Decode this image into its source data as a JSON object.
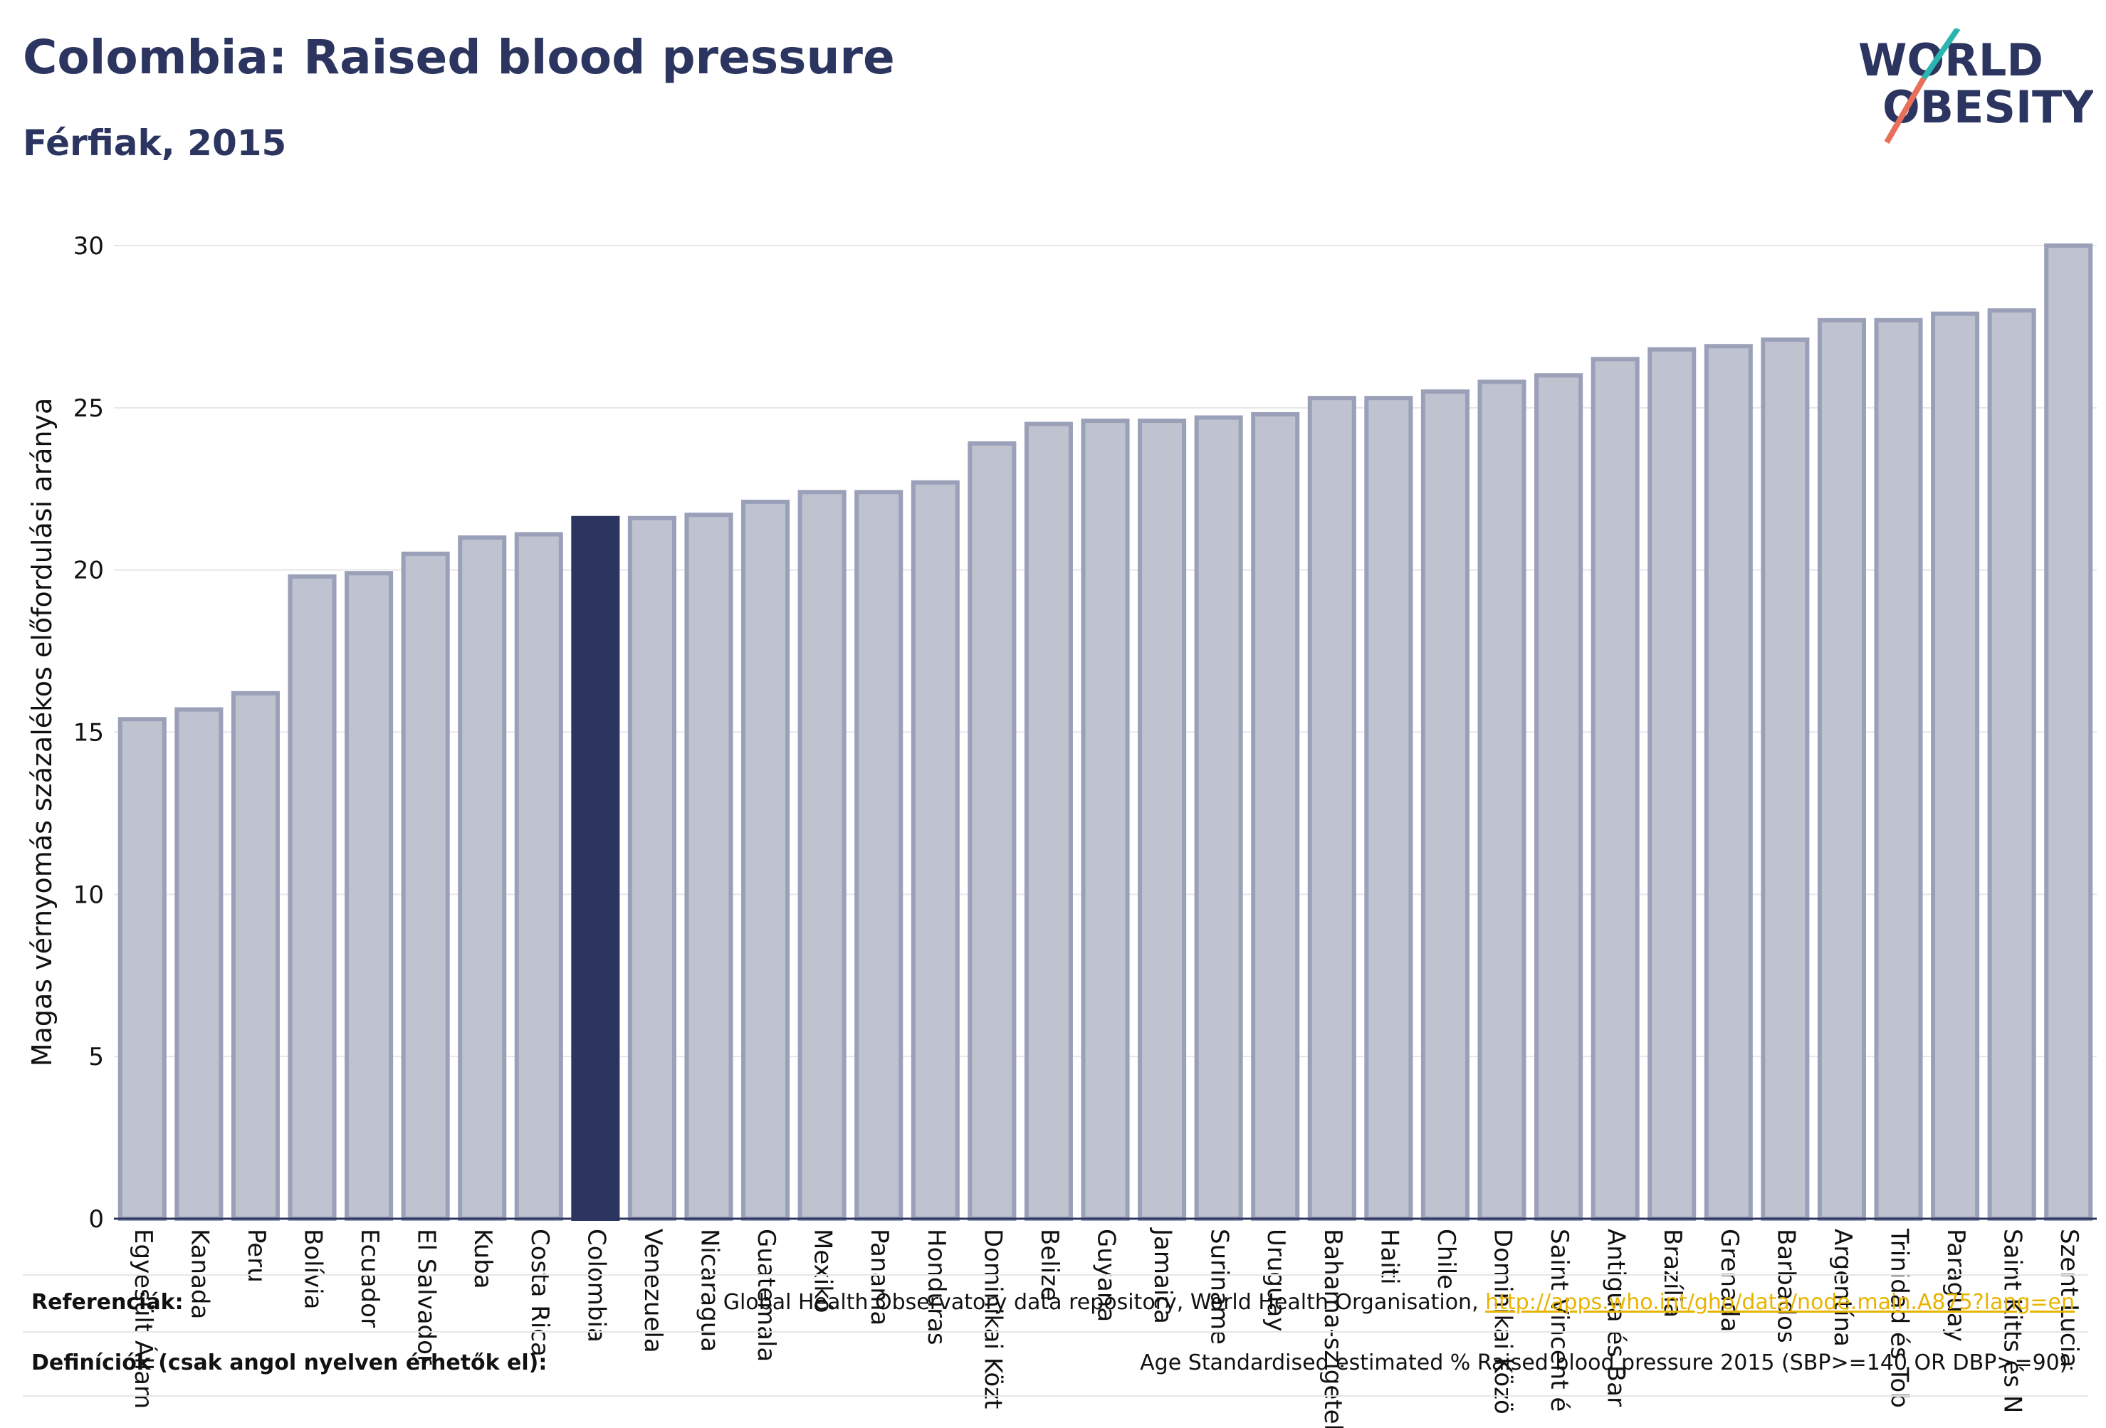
{
  "header": {
    "title": "Colombia: Raised blood pressure",
    "subtitle": "Férfiak, 2015"
  },
  "logo": {
    "line1": "WORLD",
    "line2": "OBESITY",
    "accent_teal": "#2bb5b1",
    "accent_coral": "#e8705a",
    "text_color": "#2b355f"
  },
  "colors": {
    "bar_default": "#bfc2cf",
    "bar_border": "#9aa0b8",
    "bar_highlight": "#2b355f",
    "grid": "#e6e6ec",
    "axis_text": "#111111"
  },
  "chart_data": {
    "type": "bar",
    "ylabel": "Magas vérnyomás százalékos előfordulási aránya",
    "xlabel": "",
    "ylim": [
      0,
      30
    ],
    "yticks": [
      0,
      5,
      10,
      15,
      20,
      25,
      30
    ],
    "highlight": "Colombia",
    "grid": true,
    "categories": [
      "Egyesült Állam",
      "Kanada",
      "Peru",
      "Bolívia",
      "Ecuador",
      "El Salvador",
      "Kuba",
      "Costa Rica",
      "Colombia",
      "Venezuela",
      "Nicaragua",
      "Guatemala",
      "Mexikó",
      "Panama",
      "Honduras",
      "Dominikai Közt",
      "Belize",
      "Guyana",
      "Jamaica",
      "Suriname",
      "Uruguay",
      "Bahama-szigetek",
      "Haiti",
      "Chile",
      "Dominikai Közö",
      "Saint Vincent é",
      "Antigua és Bar",
      "Brazília",
      "Grenada",
      "Barbados",
      "Argentína",
      "Trinidad és Tob",
      "Paraguay",
      "Saint Kitts és N",
      "Szent Lucia"
    ],
    "values": [
      15.4,
      15.7,
      16.2,
      19.8,
      19.9,
      20.5,
      21.0,
      21.1,
      21.6,
      21.6,
      21.7,
      22.1,
      22.4,
      22.4,
      22.7,
      23.9,
      24.5,
      24.6,
      24.6,
      24.7,
      24.8,
      25.3,
      25.3,
      25.5,
      25.8,
      26.0,
      26.5,
      26.8,
      26.9,
      27.1,
      27.7,
      27.7,
      27.9,
      28.0,
      30.0
    ]
  },
  "footer": {
    "references_label": "Referenciák:",
    "references_text": "Global Health Observatory data repository, World Health Organisation, ",
    "references_link": "http://apps.who.int/gho/data/node.main.A875?lang=en",
    "definitions_label": "Definíciók (csak angol nyelven érhetők el):",
    "definitions_text": "Age Standardised estimated % Raised blood pressure 2015 (SBP>=140 OR DBP>=90)."
  }
}
